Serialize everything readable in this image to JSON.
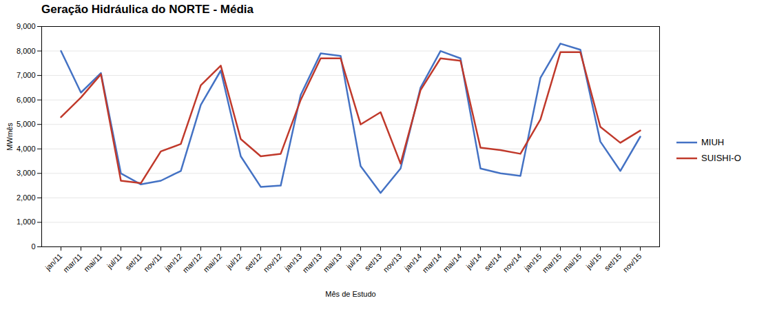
{
  "chart_data": {
    "type": "line",
    "title": "Geração Hidráulica do NORTE - Média",
    "xlabel": "Mês de Estudo",
    "ylabel": "MWmês",
    "categories": [
      "jan/11",
      "mar/11",
      "mai/11",
      "jul/11",
      "set/11",
      "nov/11",
      "jan/12",
      "mar/12",
      "mai/12",
      "jul/12",
      "set/12",
      "nov/12",
      "jan/13",
      "mar/13",
      "mai/13",
      "jul/13",
      "set/13",
      "nov/13",
      "jan/14",
      "mar/14",
      "mai/14",
      "jul/14",
      "set/14",
      "nov/14",
      "jan/15",
      "mar/15",
      "mai/15",
      "jul/15",
      "set/15",
      "nov/15"
    ],
    "series": [
      {
        "name": "MIUH",
        "color": "#4472c4",
        "values": [
          8000,
          6300,
          7100,
          3000,
          2550,
          2700,
          3100,
          5800,
          7200,
          3700,
          2450,
          2500,
          6200,
          7900,
          7800,
          3300,
          2200,
          3200,
          6500,
          8000,
          7700,
          3200,
          3000,
          2900,
          6900,
          8300,
          8050,
          4300,
          3100,
          4500
        ]
      },
      {
        "name": "SUISHI-O",
        "color": "#c0392b",
        "values": [
          5300,
          6100,
          7050,
          2700,
          2600,
          3900,
          4200,
          6600,
          7400,
          4400,
          3700,
          3800,
          6000,
          7700,
          7700,
          5000,
          5500,
          3400,
          6400,
          7700,
          7600,
          4050,
          3950,
          3800,
          5200,
          7950,
          7950,
          4900,
          4250,
          4750
        ]
      }
    ],
    "ylim": [
      0,
      9000
    ],
    "yticks": [
      0,
      1000,
      2000,
      3000,
      4000,
      5000,
      6000,
      7000,
      8000,
      9000
    ],
    "grid": true,
    "legend": "right"
  }
}
